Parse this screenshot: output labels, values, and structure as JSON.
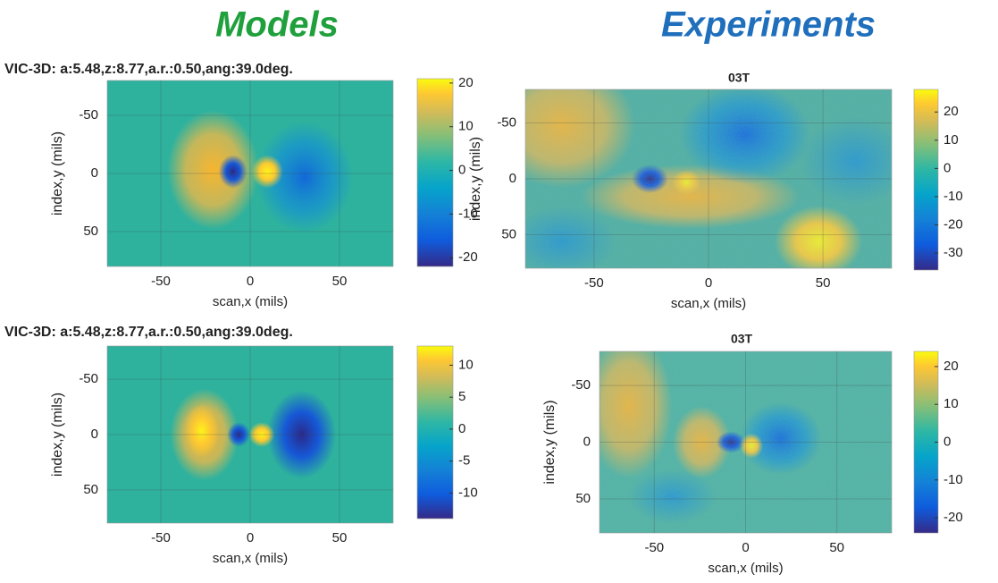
{
  "headings": {
    "models": "Models",
    "experiments": "Experiments"
  },
  "chart_data": [
    {
      "type": "heatmap",
      "title": "VIC-3D: a:5.48,z:8.77,a.r.:0.50,ang:39.0deg.",
      "xlabel": "scan,x (mils)",
      "ylabel": "index,y (mils)",
      "xlim": [
        -80,
        80
      ],
      "xticks": [
        -50,
        0,
        50
      ],
      "ylim": [
        -80,
        80
      ],
      "yticks": [
        -50,
        0,
        50
      ],
      "y_reversed": true,
      "clim": [
        -22,
        21
      ],
      "cticks": [
        -20,
        -10,
        0,
        10,
        20
      ],
      "grid": true
    },
    {
      "type": "heatmap",
      "title": "03T",
      "xlabel": "scan,x (mils)",
      "ylabel": "index,y (mils)",
      "xlim": [
        -80,
        80
      ],
      "xticks": [
        -50,
        0,
        50
      ],
      "ylim": [
        -80,
        80
      ],
      "yticks": [
        -50,
        0,
        50
      ],
      "y_reversed": true,
      "clim": [
        -36,
        28
      ],
      "cticks": [
        -30,
        -20,
        -10,
        0,
        10,
        20
      ],
      "grid": true
    },
    {
      "type": "heatmap",
      "title": "VIC-3D: a:5.48,z:8.77,a.r.:0.50,ang:39.0deg.",
      "xlabel": "scan,x (mils)",
      "ylabel": "index,y (mils)",
      "xlim": [
        -80,
        80
      ],
      "xticks": [
        -50,
        0,
        50
      ],
      "ylim": [
        -80,
        80
      ],
      "yticks": [
        -50,
        0,
        50
      ],
      "y_reversed": true,
      "clim": [
        -14,
        13
      ],
      "cticks": [
        -10,
        -5,
        0,
        5,
        10
      ],
      "grid": true
    },
    {
      "type": "heatmap",
      "title": "03T",
      "xlabel": "scan,x (mils)",
      "ylabel": "index,y (mils)",
      "xlim": [
        -80,
        80
      ],
      "xticks": [
        -50,
        0,
        50
      ],
      "ylim": [
        -80,
        80
      ],
      "yticks": [
        -50,
        0,
        50
      ],
      "y_reversed": true,
      "clim": [
        -24,
        24
      ],
      "cticks": [
        -20,
        -10,
        0,
        10,
        20
      ],
      "grid": true
    }
  ]
}
